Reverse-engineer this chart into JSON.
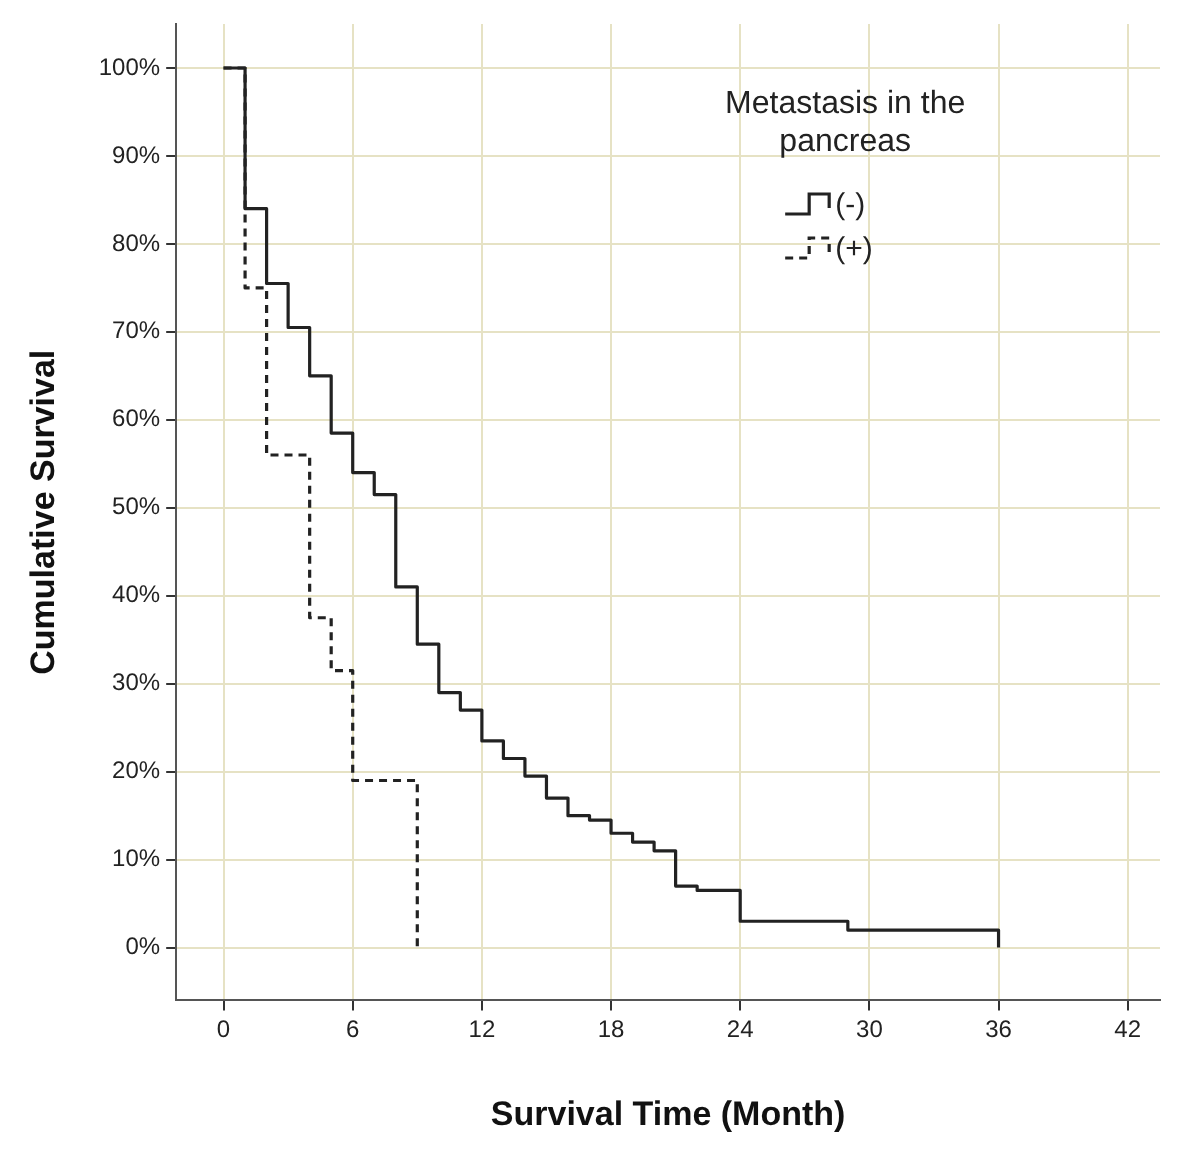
{
  "chart_data": {
    "type": "step",
    "xlabel": "Survival Time (Month)",
    "ylabel": "Cumulative Survival",
    "legend_title": "Metastasis in the pancreas",
    "legend": "top right",
    "grid": true,
    "xlim": [
      -2.2,
      43.5
    ],
    "xticks": [
      0,
      6,
      12,
      18,
      24,
      30,
      36,
      42
    ],
    "ylim": [
      -6,
      105
    ],
    "yticks": [
      {
        "value": 0,
        "label": "0%"
      },
      {
        "value": 10,
        "label": "10%"
      },
      {
        "value": 20,
        "label": "20%"
      },
      {
        "value": 30,
        "label": "30%"
      },
      {
        "value": 40,
        "label": "40%"
      },
      {
        "value": 50,
        "label": "50%"
      },
      {
        "value": 60,
        "label": "60%"
      },
      {
        "value": 70,
        "label": "70%"
      },
      {
        "value": 80,
        "label": "80%"
      },
      {
        "value": 90,
        "label": "90%"
      },
      {
        "value": 100,
        "label": "100%"
      }
    ],
    "series": [
      {
        "name": "(-)",
        "color": "#222222",
        "line_style": "solid",
        "x": [
          0,
          1,
          2,
          3,
          4,
          5,
          6,
          7,
          8,
          9,
          10,
          11,
          12,
          13,
          14,
          15,
          16,
          17,
          18,
          19,
          20,
          21,
          22,
          24,
          29,
          36
        ],
        "values": [
          100,
          84,
          75.5,
          70.5,
          65,
          58.5,
          54,
          51.5,
          41,
          34.5,
          29,
          27,
          23.5,
          21.5,
          19.5,
          17,
          15,
          14.5,
          13,
          12,
          11,
          7,
          6.5,
          3,
          2,
          0
        ]
      },
      {
        "name": "(+)",
        "color": "#222222",
        "line_style": "dashed",
        "x": [
          0,
          1,
          2,
          4,
          5,
          6,
          9
        ],
        "values": [
          100,
          75,
          56,
          37.5,
          31.5,
          19,
          0
        ]
      }
    ]
  }
}
